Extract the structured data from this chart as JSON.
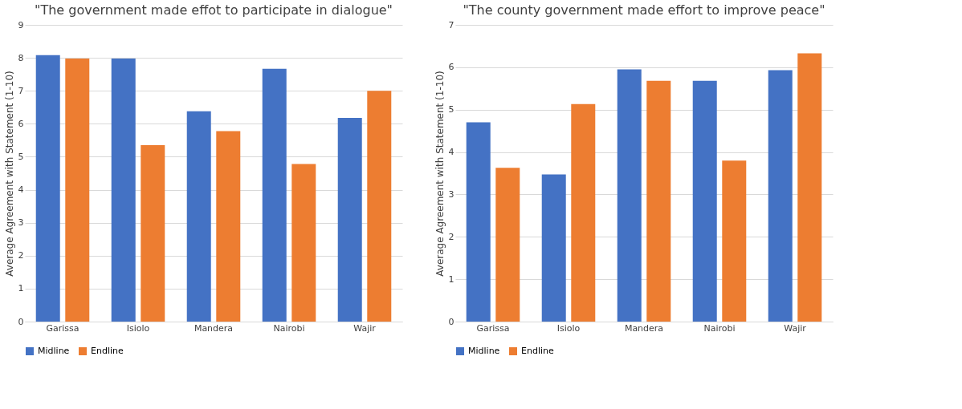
{
  "chart_data": [
    {
      "type": "bar",
      "title": "\"The government made effot to participate in dialogue\"",
      "ylabel": "Average Agreement with Statement (1-10)",
      "categories": [
        "Garissa",
        "Isiolo",
        "Mandera",
        "Nairobi",
        "Wajir"
      ],
      "series": [
        {
          "name": "Midline",
          "color": "#4472c4",
          "values": [
            8.08,
            7.98,
            6.38,
            7.67,
            6.18
          ]
        },
        {
          "name": "Endline",
          "color": "#ed7d31",
          "values": [
            7.98,
            5.35,
            5.78,
            4.78,
            7.0
          ]
        }
      ],
      "ylim": [
        0,
        9
      ],
      "yticks": [
        0,
        1,
        2,
        3,
        4,
        5,
        6,
        7,
        8,
        9
      ],
      "grid": "y",
      "legend": "bottom"
    },
    {
      "type": "bar",
      "title": "\"The county government made effort to improve peace\"",
      "ylabel": "Average Agreement with Statement (1-10)",
      "categories": [
        "Garissa",
        "Isiolo",
        "Mandera",
        "Nairobi",
        "Wajir"
      ],
      "series": [
        {
          "name": "Midline",
          "color": "#4472c4",
          "values": [
            4.7,
            3.47,
            5.95,
            5.68,
            5.93
          ]
        },
        {
          "name": "Endline",
          "color": "#ed7d31",
          "values": [
            3.63,
            5.13,
            5.68,
            3.8,
            6.33
          ]
        }
      ],
      "ylim": [
        0,
        7
      ],
      "yticks": [
        0,
        1,
        2,
        3,
        4,
        5,
        6,
        7
      ],
      "grid": "y",
      "legend": "bottom"
    }
  ]
}
